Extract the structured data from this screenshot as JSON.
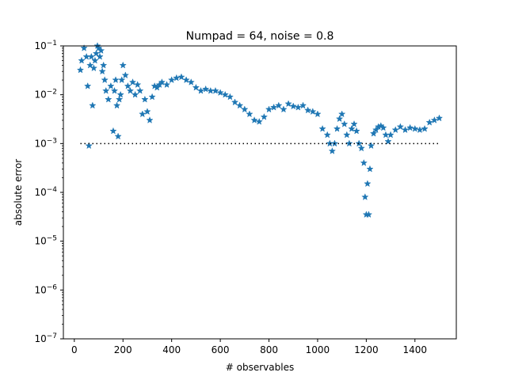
{
  "chart_data": {
    "type": "scatter",
    "title": "Numpad = 64, noise = 0.8",
    "xlabel": "# observables",
    "ylabel": "absolute error",
    "xlim": [
      -45,
      1570
    ],
    "ylim": [
      1e-07,
      0.1
    ],
    "yscale": "log",
    "grid": false,
    "x_ticks": [
      0,
      200,
      400,
      600,
      800,
      1000,
      1200,
      1400
    ],
    "y_ticks": [
      {
        "value": 1e-07,
        "base": "10",
        "exp": "−7"
      },
      {
        "value": 1e-06,
        "base": "10",
        "exp": "−6"
      },
      {
        "value": 1e-05,
        "base": "10",
        "exp": "−5"
      },
      {
        "value": 0.0001,
        "base": "10",
        "exp": "−4"
      },
      {
        "value": 0.001,
        "base": "10",
        "exp": "−3"
      },
      {
        "value": 0.01,
        "base": "10",
        "exp": "−2"
      },
      {
        "value": 0.1,
        "base": "10",
        "exp": "−1"
      }
    ],
    "marker": "star",
    "marker_color": "#1f77b4",
    "reference_line": {
      "x": [
        25,
        1500
      ],
      "y": 0.001,
      "style": "dotted",
      "color": "#000000"
    },
    "series": [
      {
        "x": [
          25,
          30,
          40,
          50,
          55,
          60,
          65,
          70,
          75,
          80,
          85,
          90,
          95,
          100,
          105,
          110,
          115,
          120,
          125,
          130,
          140,
          150,
          160,
          165,
          170,
          175,
          180,
          185,
          190,
          195,
          200,
          210,
          220,
          230,
          240,
          250,
          260,
          270,
          280,
          290,
          300,
          310,
          320,
          330,
          340,
          350,
          360,
          380,
          400,
          420,
          440,
          460,
          480,
          500,
          520,
          540,
          560,
          580,
          600,
          620,
          640,
          660,
          680,
          700,
          720,
          740,
          760,
          780,
          800,
          820,
          840,
          860,
          880,
          900,
          920,
          940,
          960,
          980,
          1000,
          1020,
          1040,
          1050,
          1060,
          1070,
          1080,
          1090,
          1100,
          1110,
          1120,
          1130,
          1140,
          1150,
          1160,
          1170,
          1180,
          1190,
          1195,
          1200,
          1205,
          1210,
          1215,
          1220,
          1230,
          1240,
          1250,
          1260,
          1270,
          1280,
          1290,
          1300,
          1320,
          1340,
          1360,
          1380,
          1400,
          1420,
          1440,
          1460,
          1480,
          1500
        ],
        "y": [
          0.032,
          0.05,
          0.09,
          0.06,
          0.015,
          0.0009,
          0.04,
          0.06,
          0.006,
          0.035,
          0.05,
          0.07,
          0.1,
          0.09,
          0.06,
          0.08,
          0.03,
          0.04,
          0.02,
          0.012,
          0.008,
          0.015,
          0.0018,
          0.012,
          0.02,
          0.006,
          0.0014,
          0.008,
          0.01,
          0.02,
          0.04,
          0.025,
          0.015,
          0.012,
          0.018,
          0.01,
          0.016,
          0.012,
          0.004,
          0.008,
          0.0045,
          0.003,
          0.009,
          0.015,
          0.014,
          0.016,
          0.018,
          0.016,
          0.02,
          0.022,
          0.023,
          0.02,
          0.018,
          0.014,
          0.012,
          0.013,
          0.012,
          0.012,
          0.011,
          0.01,
          0.009,
          0.007,
          0.006,
          0.005,
          0.004,
          0.003,
          0.0028,
          0.0035,
          0.005,
          0.0055,
          0.006,
          0.005,
          0.0065,
          0.0058,
          0.0055,
          0.006,
          0.0048,
          0.0045,
          0.004,
          0.002,
          0.0015,
          0.001,
          0.0007,
          0.001,
          0.002,
          0.0032,
          0.004,
          0.0025,
          0.0015,
          0.001,
          0.002,
          0.0025,
          0.0018,
          0.001,
          0.0008,
          0.0004,
          8e-05,
          3.5e-05,
          0.00015,
          3.5e-05,
          0.0003,
          0.0009,
          0.0016,
          0.0019,
          0.0022,
          0.0023,
          0.0021,
          0.0015,
          0.0011,
          0.0015,
          0.0019,
          0.0022,
          0.0019,
          0.0021,
          0.002,
          0.0019,
          0.002,
          0.0027,
          0.003,
          0.0033
        ]
      }
    ]
  }
}
